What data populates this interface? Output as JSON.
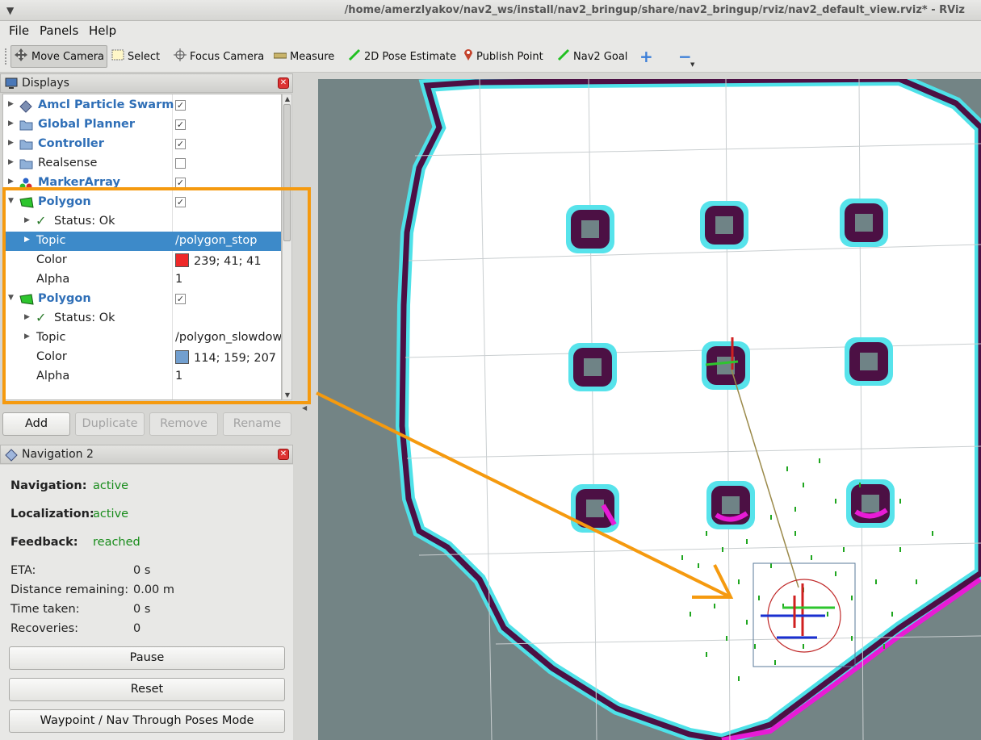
{
  "window": {
    "title": "/home/amerzlyakov/nav2_ws/install/nav2_bringup/share/nav2_bringup/rviz/nav2_default_view.rviz* - RViz"
  },
  "menu": [
    "File",
    "Panels",
    "Help"
  ],
  "toolbar": {
    "move_camera": "Move Camera",
    "select": "Select",
    "focus_camera": "Focus Camera",
    "measure": "Measure",
    "pose_estimate": "2D Pose Estimate",
    "publish_point": "Publish Point",
    "nav2_goal": "Nav2 Goal"
  },
  "displays": {
    "title": "Displays",
    "items": [
      {
        "label": "Amcl Particle Swarm",
        "checked": true
      },
      {
        "label": "Global Planner",
        "checked": true
      },
      {
        "label": "Controller",
        "checked": true
      },
      {
        "label": "Realsense",
        "checked": false
      },
      {
        "label": "MarkerArray",
        "checked": true
      },
      {
        "label": "Polygon",
        "checked": true
      },
      {
        "label": "Status: Ok"
      },
      {
        "label": "Topic",
        "value": "/polygon_stop"
      },
      {
        "label": "Color",
        "value": "239; 41; 41",
        "swatch": "#ef2929"
      },
      {
        "label": "Alpha",
        "value": "1"
      },
      {
        "label": "Polygon",
        "checked": true
      },
      {
        "label": "Status: Ok"
      },
      {
        "label": "Topic",
        "value": "/polygon_slowdown"
      },
      {
        "label": "Color",
        "value": "114; 159; 207",
        "swatch": "#729fcf"
      },
      {
        "label": "Alpha",
        "value": "1"
      }
    ],
    "buttons": {
      "add": "Add",
      "duplicate": "Duplicate",
      "remove": "Remove",
      "rename": "Rename"
    }
  },
  "nav2": {
    "title": "Navigation 2",
    "navigation_label": "Navigation:",
    "navigation_value": "active",
    "localization_label": "Localization:",
    "localization_value": "active",
    "feedback_label": "Feedback:",
    "feedback_value": "reached",
    "eta_label": "ETA:",
    "eta_value": "0 s",
    "distance_label": "Distance remaining:",
    "distance_value": "0.00 m",
    "time_label": "Time taken:",
    "time_value": "0 s",
    "recoveries_label": "Recoveries:",
    "recoveries_value": "0",
    "pause": "Pause",
    "reset": "Reset",
    "mode": "Waypoint / Nav Through Poses Mode"
  },
  "colors": {
    "highlight": "#f59a0f",
    "selection": "#3d8ac9",
    "active_status": "#188c1b"
  }
}
